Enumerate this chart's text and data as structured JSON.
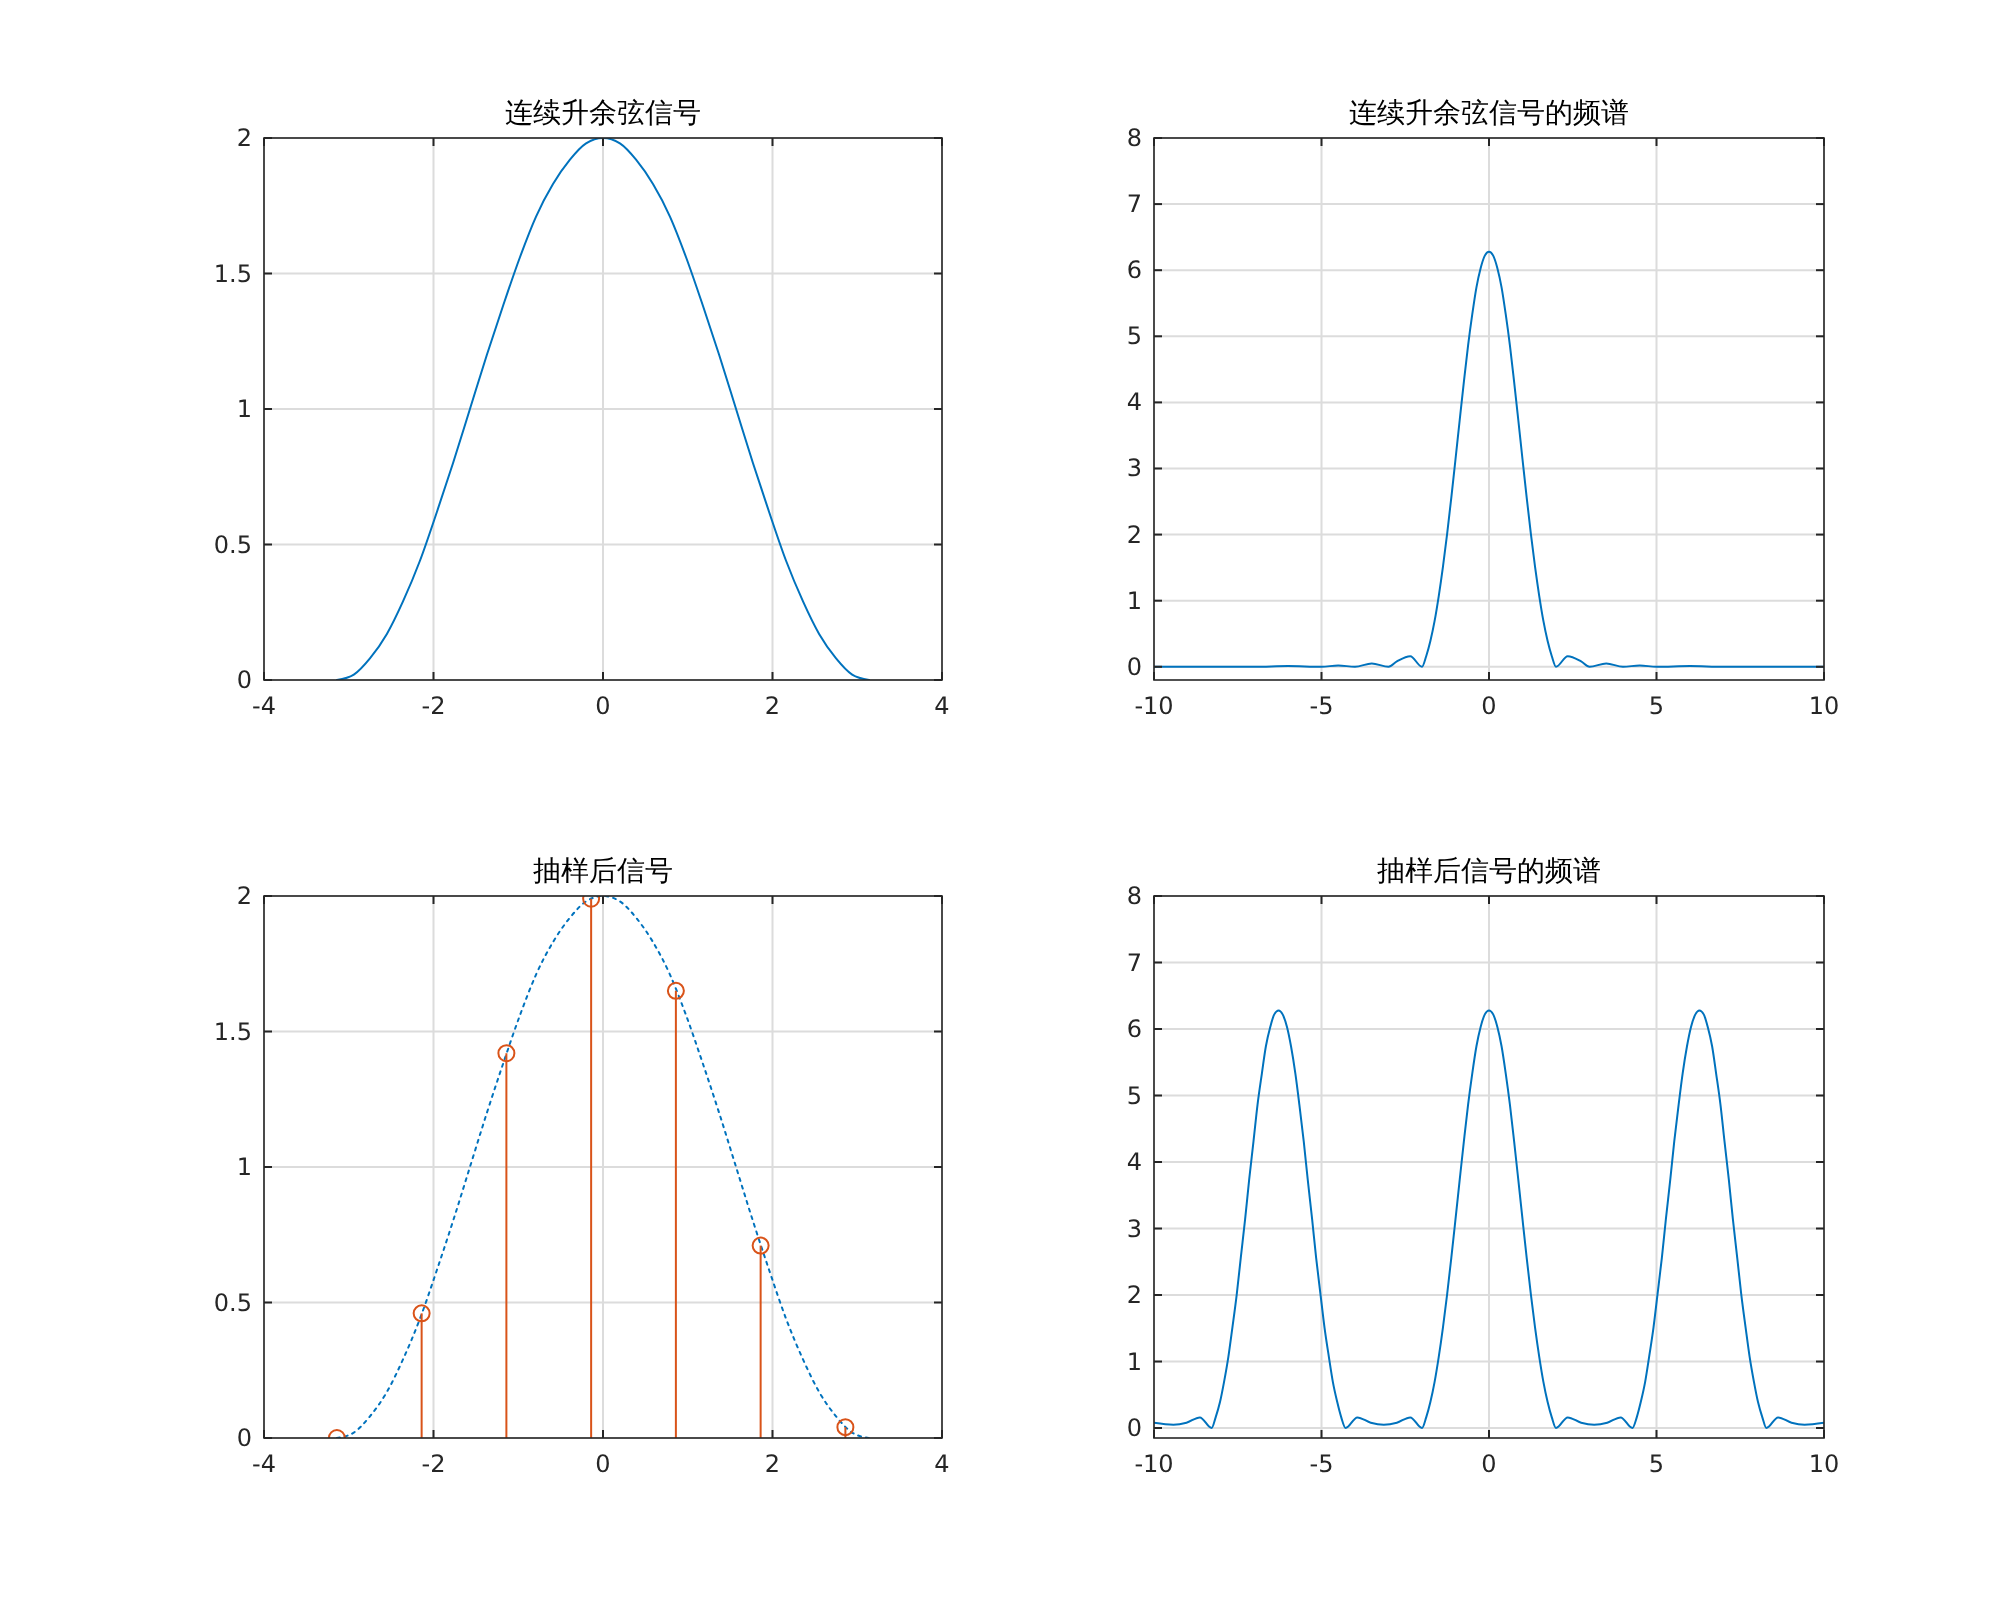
{
  "chart_data": [
    {
      "type": "line",
      "title": "连续升余弦信号",
      "xlim": [
        -4,
        4
      ],
      "xticks": [
        -4,
        -2,
        0,
        2,
        4
      ],
      "ylim": [
        0,
        2
      ],
      "yticks": [
        0,
        0.5,
        1,
        1.5,
        2
      ],
      "grid": true,
      "series": [
        {
          "color": "#0072bd",
          "x": [
            -3.14,
            -2.94,
            -2.75,
            -2.55,
            -2.36,
            -2.16,
            -1.96,
            -1.77,
            -1.57,
            -1.37,
            -1.18,
            -0.98,
            -0.79,
            -0.59,
            -0.39,
            -0.2,
            0,
            0.2,
            0.39,
            0.59,
            0.79,
            0.98,
            1.18,
            1.37,
            1.57,
            1.77,
            1.96,
            2.16,
            2.36,
            2.55,
            2.75,
            2.94,
            3.14
          ],
          "values": [
            0,
            0.02,
            0.08,
            0.17,
            0.29,
            0.44,
            0.62,
            0.8,
            1,
            1.2,
            1.38,
            1.56,
            1.71,
            1.83,
            1.92,
            1.98,
            2,
            1.98,
            1.92,
            1.83,
            1.71,
            1.56,
            1.38,
            1.2,
            1,
            0.8,
            0.62,
            0.44,
            0.29,
            0.17,
            0.08,
            0.02,
            0
          ]
        }
      ]
    },
    {
      "type": "line",
      "title": "连续升余弦信号的频谱",
      "xlim": [
        -10,
        10
      ],
      "xticks": [
        -10,
        -5,
        0,
        5,
        10
      ],
      "ylim": [
        -0.2,
        8
      ],
      "yticks": [
        0,
        1,
        2,
        3,
        4,
        5,
        6,
        7,
        8
      ],
      "grid": true,
      "series": [
        {
          "color": "#0072bd",
          "x": [
            -10,
            -8,
            -7,
            -6,
            -5,
            -4.5,
            -4,
            -3.5,
            -3,
            -2.75,
            -2.35,
            -2,
            -1.875,
            -1.75,
            -1.625,
            -1.5,
            -1.375,
            -1.25,
            -1.125,
            -1,
            -0.875,
            -0.75,
            -0.625,
            -0.5,
            -0.375,
            -0.25,
            -0.125,
            0,
            0.125,
            0.25,
            0.375,
            0.5,
            0.625,
            0.75,
            0.875,
            1,
            1.125,
            1.25,
            1.375,
            1.5,
            1.625,
            1.75,
            1.875,
            2,
            2.35,
            2.75,
            3,
            3.5,
            4,
            4.5,
            5,
            6,
            7,
            8,
            10
          ],
          "values": [
            0,
            0,
            0,
            0.01,
            0,
            0.02,
            0,
            0.05,
            0,
            0.08,
            0.16,
            0,
            0.16,
            0.39,
            0.69,
            1.07,
            1.51,
            2.01,
            2.56,
            3.14,
            3.73,
            4.31,
            4.86,
            5.33,
            5.74,
            6.03,
            6.22,
            6.28,
            6.22,
            6.03,
            5.74,
            5.33,
            4.86,
            4.31,
            3.73,
            3.14,
            2.56,
            2.01,
            1.51,
            1.07,
            0.69,
            0.39,
            0.16,
            0,
            0.16,
            0.08,
            0,
            0.05,
            0,
            0.02,
            0,
            0.01,
            0,
            0,
            0
          ]
        }
      ]
    },
    {
      "type": "line",
      "title": "抽样后信号",
      "xlim": [
        -4,
        4
      ],
      "xticks": [
        -4,
        -2,
        0,
        2,
        4
      ],
      "ylim": [
        0,
        2
      ],
      "yticks": [
        0,
        0.5,
        1,
        1.5,
        2
      ],
      "grid": true,
      "series": [
        {
          "color": "#0072bd",
          "line_style": "dotted",
          "x": [
            -3.14,
            -2.94,
            -2.75,
            -2.55,
            -2.36,
            -2.16,
            -1.96,
            -1.77,
            -1.57,
            -1.37,
            -1.18,
            -0.98,
            -0.79,
            -0.59,
            -0.39,
            -0.2,
            0,
            0.2,
            0.39,
            0.59,
            0.79,
            0.98,
            1.18,
            1.37,
            1.57,
            1.77,
            1.96,
            2.16,
            2.36,
            2.55,
            2.75,
            2.94,
            3.14
          ],
          "values": [
            0,
            0.02,
            0.08,
            0.17,
            0.29,
            0.44,
            0.62,
            0.8,
            1,
            1.2,
            1.38,
            1.56,
            1.71,
            1.83,
            1.92,
            1.98,
            2,
            1.98,
            1.92,
            1.83,
            1.71,
            1.56,
            1.38,
            1.2,
            1,
            0.8,
            0.62,
            0.44,
            0.29,
            0.17,
            0.08,
            0.02,
            0
          ]
        },
        {
          "type": "lollipop",
          "color": "#d95319",
          "marker": "circle",
          "x": [
            -3.14,
            -2.14,
            -1.14,
            -0.14,
            0.86,
            1.86,
            2.86
          ],
          "values": [
            0,
            0.46,
            1.42,
            1.99,
            1.65,
            0.71,
            0.04
          ]
        }
      ]
    },
    {
      "type": "line",
      "title": "抽样后信号的频谱",
      "xlim": [
        -10,
        10
      ],
      "xticks": [
        -10,
        -5,
        0,
        5,
        10
      ],
      "ylim": [
        -0.15,
        8
      ],
      "yticks": [
        0,
        1,
        2,
        3,
        4,
        5,
        6,
        7,
        8
      ],
      "grid": true,
      "series": [
        {
          "color": "#0072bd",
          "x": [
            -10,
            -9.42,
            -9.03,
            -8.63,
            -8.28,
            -8.16,
            -8.03,
            -7.91,
            -7.78,
            -7.66,
            -7.53,
            -7.41,
            -7.28,
            -7.16,
            -7.03,
            -6.91,
            -6.78,
            -6.66,
            -6.53,
            -6.41,
            -6.28,
            -6.16,
            -6.03,
            -5.91,
            -5.78,
            -5.66,
            -5.53,
            -5.41,
            -5.28,
            -5.16,
            -5.03,
            -4.91,
            -4.78,
            -4.66,
            -4.53,
            -4.41,
            -4.28,
            -3.93,
            -3.53,
            -3.14,
            -2.75,
            -2.35,
            -2,
            -1.875,
            -1.75,
            -1.625,
            -1.5,
            -1.375,
            -1.25,
            -1.125,
            -1,
            -0.875,
            -0.75,
            -0.625,
            -0.5,
            -0.375,
            -0.25,
            -0.125,
            0,
            0.125,
            0.25,
            0.375,
            0.5,
            0.625,
            0.75,
            0.875,
            1,
            1.125,
            1.25,
            1.375,
            1.5,
            1.625,
            1.75,
            1.875,
            2,
            2.35,
            2.75,
            3.14,
            3.53,
            3.93,
            4.28,
            4.41,
            4.53,
            4.66,
            4.78,
            4.91,
            5.03,
            5.16,
            5.28,
            5.41,
            5.53,
            5.66,
            5.78,
            5.91,
            6.03,
            6.16,
            6.28,
            6.41,
            6.53,
            6.66,
            6.78,
            6.91,
            7.03,
            7.16,
            7.28,
            7.41,
            7.53,
            7.66,
            7.78,
            7.91,
            8.03,
            8.16,
            8.28,
            8.63,
            9.03,
            9.42,
            10
          ],
          "values": [
            0.08,
            0.05,
            0.08,
            0.16,
            0,
            0.16,
            0.39,
            0.69,
            1.07,
            1.51,
            2.01,
            2.56,
            3.14,
            3.73,
            4.31,
            4.86,
            5.33,
            5.74,
            6.03,
            6.22,
            6.28,
            6.22,
            6.03,
            5.74,
            5.33,
            4.86,
            4.31,
            3.73,
            3.14,
            2.56,
            2.01,
            1.51,
            1.07,
            0.69,
            0.39,
            0.16,
            0,
            0.16,
            0.08,
            0.05,
            0.08,
            0.16,
            0,
            0.16,
            0.39,
            0.69,
            1.07,
            1.51,
            2.01,
            2.56,
            3.14,
            3.73,
            4.31,
            4.86,
            5.33,
            5.74,
            6.03,
            6.22,
            6.28,
            6.22,
            6.03,
            5.74,
            5.33,
            4.86,
            4.31,
            3.73,
            3.14,
            2.56,
            2.01,
            1.51,
            1.07,
            0.69,
            0.39,
            0.16,
            0,
            0.16,
            0.08,
            0.05,
            0.08,
            0.16,
            0,
            0.16,
            0.39,
            0.69,
            1.07,
            1.51,
            2.01,
            2.56,
            3.14,
            3.73,
            4.31,
            4.86,
            5.33,
            5.74,
            6.03,
            6.22,
            6.28,
            6.22,
            6.03,
            5.74,
            5.33,
            4.86,
            4.31,
            3.73,
            3.14,
            2.56,
            2.01,
            1.51,
            1.07,
            0.69,
            0.39,
            0.16,
            0,
            0.16,
            0.08,
            0.05,
            0.08
          ]
        }
      ]
    }
  ]
}
